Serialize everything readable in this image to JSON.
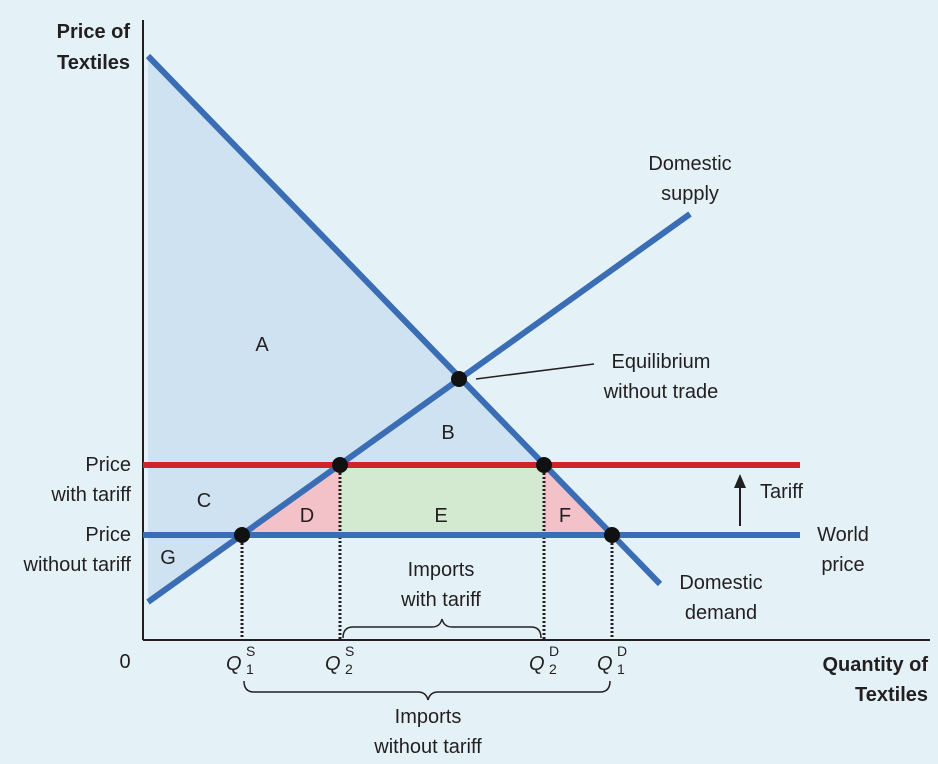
{
  "axes": {
    "y_title_line1": "Price of",
    "y_title_line2": "Textiles",
    "x_title_line1": "Quantity of",
    "x_title_line2": "Textiles",
    "origin": "0"
  },
  "price_labels": {
    "with_tariff_line1": "Price",
    "with_tariff_line2": "with tariff",
    "without_tariff_line1": "Price",
    "without_tariff_line2": "without tariff"
  },
  "curves": {
    "supply_line1": "Domestic",
    "supply_line2": "supply",
    "demand_line1": "Domestic",
    "demand_line2": "demand",
    "world_price_line1": "World",
    "world_price_line2": "price",
    "tariff": "Tariff"
  },
  "equilibrium": {
    "line1": "Equilibrium",
    "line2": "without trade"
  },
  "regions": {
    "a": "A",
    "b": "B",
    "c": "C",
    "d": "D",
    "e": "E",
    "f": "F",
    "g": "G"
  },
  "quantities": {
    "q_letter": "Q",
    "q1s_sup": "S",
    "q1s_sub": "1",
    "q2s_sup": "S",
    "q2s_sub": "2",
    "q2d_sup": "D",
    "q2d_sub": "2",
    "q1d_sup": "D",
    "q1d_sub": "1"
  },
  "imports": {
    "with_tariff_line1": "Imports",
    "with_tariff_line2": "with tariff",
    "without_tariff_line1": "Imports",
    "without_tariff_line2": "without tariff"
  },
  "colors": {
    "background": "#e4f2f8",
    "curve_blue": "#3a6db4",
    "tariff_red": "#d1232a",
    "consumer_surplus_fill": "#cfe2f2",
    "deadweight_fill": "#f3c1c8",
    "revenue_fill": "#d4ead0"
  }
}
